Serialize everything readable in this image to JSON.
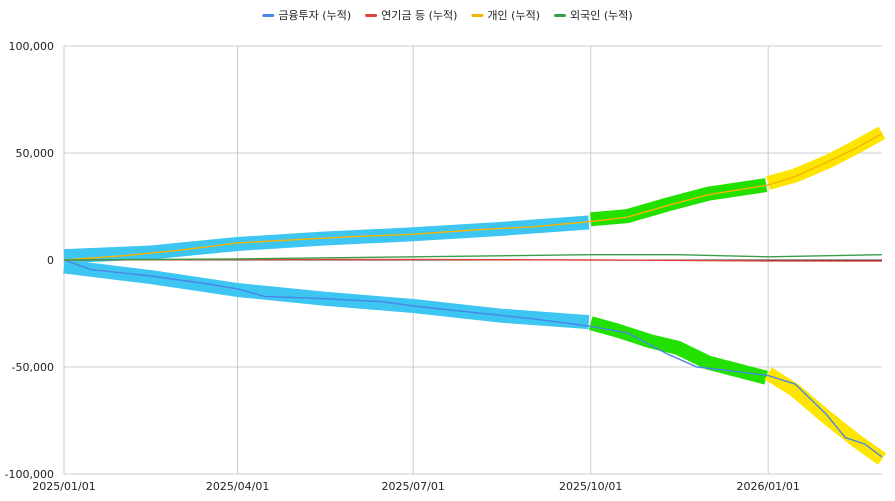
{
  "chart_data": {
    "type": "line",
    "legend": {
      "placement": "top",
      "items": [
        {
          "label": "금융투자 (누적)",
          "color": "#4a86e8"
        },
        {
          "label": "연기금 등 (누적)",
          "color": "#db4437"
        },
        {
          "label": "개인 (누적)",
          "color": "#f4b400"
        },
        {
          "label": "외국인 (누적)",
          "color": "#3c9d47"
        }
      ]
    },
    "x_range": [
      "2025-01-01",
      "2026-03-01"
    ],
    "x_ticks": [
      "2025/01/01",
      "2025/04/01",
      "2025/07/01",
      "2025/10/01",
      "2026/01/01"
    ],
    "x_tick_dates": [
      "2025-01-01",
      "2025-04-01",
      "2025-07-01",
      "2025-10-01",
      "2026-01-01"
    ],
    "ylim": [
      -100000,
      100000
    ],
    "y_ticks": [
      "100,000",
      "50,000",
      "0",
      "-50,000",
      "-100,000"
    ],
    "y_tick_values": [
      100000,
      50000,
      0,
      -50000,
      -100000
    ],
    "grid": true,
    "series": [
      {
        "name": "금융투자 (누적)",
        "color": "#4a86e8",
        "points": [
          [
            "2025-01-01",
            0
          ],
          [
            "2025-01-15",
            -4500
          ],
          [
            "2025-02-15",
            -7500
          ],
          [
            "2025-03-15",
            -11000
          ],
          [
            "2025-04-01",
            -13500
          ],
          [
            "2025-04-15",
            -17000
          ],
          [
            "2025-05-15",
            -18000
          ],
          [
            "2025-06-15",
            -19500
          ],
          [
            "2025-07-01",
            -21500
          ],
          [
            "2025-08-01",
            -24500
          ],
          [
            "2025-09-01",
            -27500
          ],
          [
            "2025-10-01",
            -31000
          ],
          [
            "2025-10-20",
            -34000
          ],
          [
            "2025-11-10",
            -44000
          ],
          [
            "2025-11-25",
            -50000
          ],
          [
            "2025-12-15",
            -52000
          ],
          [
            "2026-01-01",
            -54000
          ],
          [
            "2026-01-15",
            -58000
          ],
          [
            "2026-01-31",
            -72000
          ],
          [
            "2026-02-10",
            -83000
          ],
          [
            "2026-02-20",
            -86000
          ],
          [
            "2026-03-01",
            -92000
          ]
        ]
      },
      {
        "name": "연기금 등 (누적)",
        "color": "#db4437",
        "points": [
          [
            "2025-01-01",
            0
          ],
          [
            "2025-04-01",
            200
          ],
          [
            "2025-07-01",
            300
          ],
          [
            "2025-10-01",
            0
          ],
          [
            "2026-01-01",
            -400
          ],
          [
            "2026-03-01",
            -500
          ]
        ]
      },
      {
        "name": "개인 (누적)",
        "color": "#f4b400",
        "points": [
          [
            "2025-01-01",
            0
          ],
          [
            "2025-02-01",
            2000
          ],
          [
            "2025-03-01",
            4500
          ],
          [
            "2025-04-01",
            8000
          ],
          [
            "2025-05-01",
            9500
          ],
          [
            "2025-06-01",
            11000
          ],
          [
            "2025-07-01",
            12000
          ],
          [
            "2025-08-01",
            14000
          ],
          [
            "2025-09-01",
            15500
          ],
          [
            "2025-10-01",
            18000
          ],
          [
            "2025-10-20",
            20000
          ],
          [
            "2025-11-10",
            25500
          ],
          [
            "2025-12-01",
            30500
          ],
          [
            "2026-01-01",
            35000
          ],
          [
            "2026-01-15",
            39000
          ],
          [
            "2026-02-01",
            46000
          ],
          [
            "2026-02-15",
            52000
          ],
          [
            "2026-03-01",
            59000
          ]
        ]
      },
      {
        "name": "외국인 (누적)",
        "color": "#3c9d47",
        "points": [
          [
            "2025-01-01",
            0
          ],
          [
            "2025-04-01",
            500
          ],
          [
            "2025-07-01",
            1500
          ],
          [
            "2025-10-01",
            2500
          ],
          [
            "2025-11-15",
            2500
          ],
          [
            "2026-01-01",
            1500
          ],
          [
            "2026-03-01",
            2500
          ]
        ]
      }
    ],
    "annotations": [
      {
        "color": "#3ec6f2",
        "points": [
          [
            "2025-01-01",
            1800
          ],
          [
            "2025-02-15",
            3500
          ],
          [
            "2025-04-01",
            7500
          ],
          [
            "2025-05-15",
            10000
          ],
          [
            "2025-07-01",
            12000
          ],
          [
            "2025-08-15",
            14500
          ],
          [
            "2025-09-30",
            17500
          ]
        ]
      },
      {
        "color": "#3ec6f2",
        "points": [
          [
            "2025-01-01",
            -3000
          ],
          [
            "2025-02-15",
            -8000
          ],
          [
            "2025-04-01",
            -14000
          ],
          [
            "2025-05-15",
            -18000
          ],
          [
            "2025-07-01",
            -21500
          ],
          [
            "2025-08-15",
            -26000
          ],
          [
            "2025-09-30",
            -29000
          ]
        ]
      },
      {
        "color": "#22e000",
        "points": [
          [
            "2025-10-01",
            19000
          ],
          [
            "2025-10-20",
            20500
          ],
          [
            "2025-11-10",
            26000
          ],
          [
            "2025-12-01",
            31000
          ],
          [
            "2025-12-31",
            35000
          ]
        ]
      },
      {
        "color": "#22e000",
        "points": [
          [
            "2025-10-01",
            -29500
          ],
          [
            "2025-10-15",
            -33000
          ],
          [
            "2025-11-01",
            -38000
          ],
          [
            "2025-11-15",
            -41000
          ],
          [
            "2025-12-01",
            -48000
          ],
          [
            "2025-12-31",
            -55000
          ]
        ]
      },
      {
        "color": "#fee500",
        "points": [
          [
            "2026-01-01",
            36000
          ],
          [
            "2026-01-15",
            39500
          ],
          [
            "2026-02-01",
            46000
          ],
          [
            "2026-02-15",
            52500
          ],
          [
            "2026-03-01",
            59500
          ]
        ]
      },
      {
        "color": "#fee500",
        "points": [
          [
            "2026-01-01",
            -53000
          ],
          [
            "2026-01-15",
            -61000
          ],
          [
            "2026-02-01",
            -74000
          ],
          [
            "2026-02-15",
            -84000
          ],
          [
            "2026-03-01",
            -93000
          ]
        ]
      }
    ]
  }
}
